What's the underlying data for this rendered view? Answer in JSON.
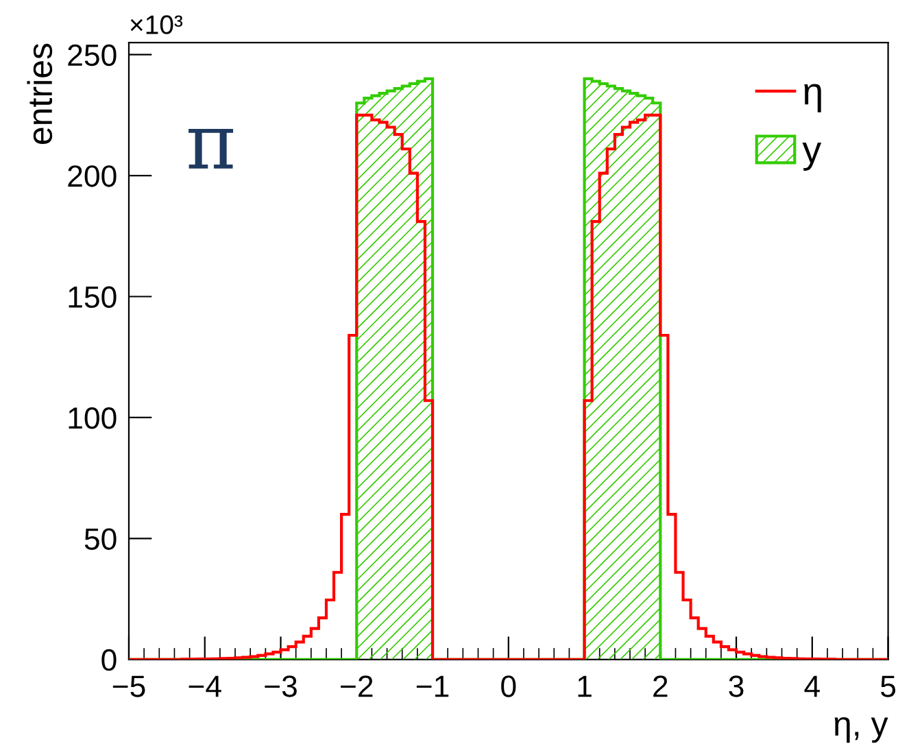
{
  "chart_data": {
    "type": "histogram",
    "ylabel": "entries",
    "xlabel": "η, y",
    "annotations": [
      "×10³",
      "π"
    ],
    "xlim": [
      -5,
      5
    ],
    "xticks": [
      -5,
      -4,
      -3,
      -2,
      -1,
      0,
      1,
      2,
      3,
      4,
      5
    ],
    "ylim": [
      0,
      255
    ],
    "yticks": [
      0,
      50,
      100,
      150,
      200,
      250
    ],
    "legend": "top right",
    "grid": false,
    "bins": [
      -5.0,
      -4.9,
      -4.8,
      -4.7,
      -4.6,
      -4.5,
      -4.4,
      -4.3,
      -4.2,
      -4.1,
      -4.0,
      -3.9,
      -3.8,
      -3.7,
      -3.6,
      -3.5,
      -3.4,
      -3.3,
      -3.2,
      -3.1,
      -3.0,
      -2.9,
      -2.8,
      -2.7,
      -2.6,
      -2.5,
      -2.4,
      -2.3,
      -2.2,
      -2.1,
      -2.0,
      -1.9,
      -1.8,
      -1.7,
      -1.6,
      -1.5,
      -1.4,
      -1.3,
      -1.2,
      -1.1,
      -1.0,
      -0.9,
      -0.8,
      -0.7,
      -0.6,
      -0.5,
      -0.4,
      -0.3,
      -0.2,
      -0.1,
      0.0,
      0.1,
      0.2,
      0.3,
      0.4,
      0.5,
      0.6,
      0.7,
      0.8,
      0.9,
      1.0,
      1.1,
      1.2,
      1.3,
      1.4,
      1.5,
      1.6,
      1.7,
      1.8,
      1.9,
      2.0,
      2.1,
      2.2,
      2.3,
      2.4,
      2.5,
      2.6,
      2.7,
      2.8,
      2.9,
      3.0,
      3.1,
      3.2,
      3.3,
      3.4,
      3.5,
      3.6,
      3.7,
      3.8,
      3.9,
      4.0,
      4.1,
      4.2,
      4.3,
      4.4,
      4.5,
      4.6,
      4.7,
      4.8,
      4.9,
      5.0
    ],
    "series": [
      {
        "name": "η",
        "color": "#ff0000",
        "values": [
          0,
          0,
          0,
          0,
          0,
          0,
          0,
          0.1,
          0.1,
          0.2,
          0.2,
          0.3,
          0.4,
          0.5,
          0.7,
          0.9,
          1.2,
          1.7,
          2.3,
          3.0,
          4.0,
          5.3,
          7.2,
          9.6,
          12.8,
          17.2,
          24.6,
          36,
          60,
          134,
          225,
          225,
          223,
          222,
          220,
          217,
          211,
          201,
          181,
          107,
          0,
          0,
          0,
          0,
          0,
          0,
          0,
          0,
          0,
          0,
          0,
          0,
          0,
          0,
          0,
          0,
          0,
          0,
          0,
          0,
          107,
          181,
          201,
          211,
          217,
          220,
          222,
          223,
          225,
          225,
          134,
          60,
          36,
          24.6,
          17.2,
          12.8,
          9.6,
          7.2,
          5.3,
          4.0,
          3.0,
          2.3,
          1.7,
          1.2,
          0.9,
          0.7,
          0.5,
          0.4,
          0.3,
          0.2,
          0.2,
          0.1,
          0.1,
          0,
          0,
          0,
          0,
          0,
          0,
          0
        ]
      },
      {
        "name": "y",
        "color": "#33cc00",
        "values": [
          0,
          0,
          0,
          0,
          0,
          0,
          0,
          0,
          0,
          0,
          0,
          0,
          0,
          0,
          0,
          0,
          0,
          0,
          0,
          0,
          0,
          0,
          0,
          0,
          0,
          0,
          0,
          0,
          0,
          0,
          230,
          232,
          233,
          234,
          235,
          236,
          237,
          238,
          239,
          240,
          0,
          0,
          0,
          0,
          0,
          0,
          0,
          0,
          0,
          0,
          0,
          0,
          0,
          0,
          0,
          0,
          0,
          0,
          0,
          0,
          240,
          239,
          238,
          237,
          236,
          235,
          234,
          233,
          232,
          230,
          0,
          0,
          0,
          0,
          0,
          0,
          0,
          0,
          0,
          0,
          0,
          0,
          0,
          0,
          0,
          0,
          0,
          0,
          0,
          0,
          0,
          0,
          0,
          0,
          0,
          0,
          0,
          0,
          0,
          0
        ]
      }
    ]
  }
}
